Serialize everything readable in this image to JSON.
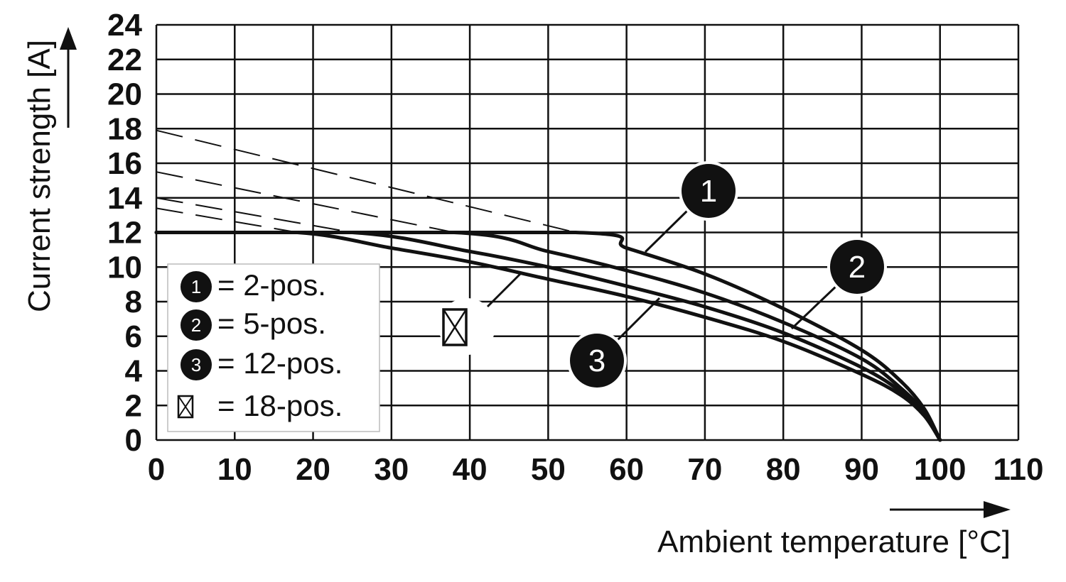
{
  "chart_data": {
    "type": "line",
    "xlabel": "Ambient temperature [°C]",
    "ylabel": "Current strength [A]",
    "xlim": [
      0,
      110
    ],
    "ylim": [
      0,
      24
    ],
    "x_ticks": [
      0,
      10,
      20,
      30,
      40,
      50,
      60,
      70,
      80,
      90,
      100,
      110
    ],
    "y_ticks": [
      0,
      2,
      4,
      6,
      8,
      10,
      12,
      14,
      16,
      18,
      20,
      22,
      24
    ],
    "grid": true,
    "series": [
      {
        "name": "2-pos.",
        "marker": "1",
        "x": [
          0,
          53.5,
          60,
          70,
          80,
          90,
          95,
          98,
          100
        ],
        "y": [
          12,
          12,
          11.1,
          9.6,
          7.6,
          5.2,
          3.4,
          1.8,
          0
        ]
      },
      {
        "name": "5-pos.",
        "marker": "2",
        "x": [
          0,
          38,
          50,
          60,
          70,
          80,
          90,
          95,
          98,
          100
        ],
        "y": [
          12,
          12,
          10.9,
          9.8,
          8.5,
          6.8,
          4.7,
          3.0,
          1.6,
          0
        ]
      },
      {
        "name": "12-pos.",
        "marker": "3",
        "x": [
          0,
          25,
          40,
          50,
          60,
          70,
          80,
          90,
          95,
          98,
          100
        ],
        "y": [
          12,
          12,
          10.9,
          10.0,
          8.9,
          7.7,
          6.2,
          4.2,
          2.8,
          1.5,
          0
        ]
      },
      {
        "name": "18-pos.",
        "marker": "⊠",
        "x": [
          0,
          18,
          30,
          40,
          50,
          60,
          70,
          80,
          90,
          95,
          98,
          100
        ],
        "y": [
          12,
          12,
          11.1,
          10.3,
          9.3,
          8.3,
          7.1,
          5.7,
          3.8,
          2.6,
          1.4,
          0
        ]
      }
    ],
    "dashed_extensions": [
      {
        "series": "2-pos.",
        "x": [
          0,
          53.5
        ],
        "y": [
          17.9,
          12
        ]
      },
      {
        "series": "5-pos.",
        "x": [
          0,
          38
        ],
        "y": [
          15.5,
          12
        ]
      },
      {
        "series": "12-pos.",
        "x": [
          0,
          25
        ],
        "y": [
          14.0,
          12
        ]
      },
      {
        "series": "18-pos.",
        "x": [
          0,
          18
        ],
        "y": [
          13.4,
          12
        ]
      }
    ],
    "legend": {
      "position": "lower-left",
      "entries": [
        {
          "marker": "1",
          "label": "= 2-pos."
        },
        {
          "marker": "2",
          "label": "= 5-pos."
        },
        {
          "marker": "3",
          "label": "= 12-pos."
        },
        {
          "marker": "⊠",
          "label": "= 18-pos."
        }
      ]
    }
  }
}
